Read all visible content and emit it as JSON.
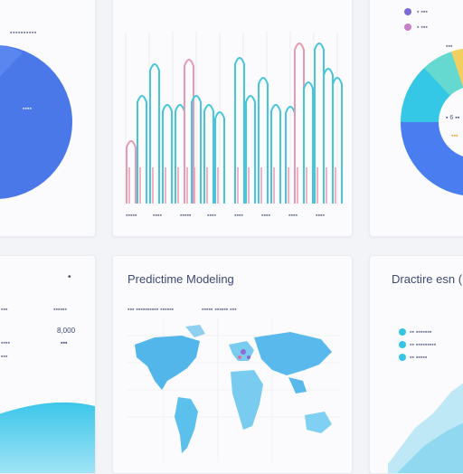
{
  "top_left": {
    "header_label": "▪▪▪▪▪▪▪▪▪▪",
    "pie_label": "▪▪▪▪"
  },
  "top_mid": {
    "x_ticks": [
      "▪▪▪▪▪",
      "▪▪▪▪",
      "▪▪▪▪▪",
      "▪▪▪▪",
      "▪▪▪▪",
      "▪▪▪▪",
      "▪▪▪▪",
      "▪▪▪▪"
    ]
  },
  "top_right": {
    "legend": [
      {
        "label": "▪ ▪▪▪",
        "color": "#7b6bd8"
      },
      {
        "label": "▪ ▪▪▪",
        "color": "#c780c8"
      }
    ],
    "corner_value": "▪▪▪",
    "donut_labels": [
      "▪ 6 ▪▪",
      "▪▪▪"
    ]
  },
  "bottom_left": {
    "marker": "•",
    "rows": [
      {
        "left": "▪▪▪",
        "right": "▪▪▪▪▪▪"
      },
      {
        "left": "",
        "right": "8,000"
      },
      {
        "left": "▪▪▪▪",
        "right": "▪▪▪"
      },
      {
        "left": "▪▪▪",
        "right": ""
      }
    ]
  },
  "bottom_mid": {
    "title": "Predictime Modeling",
    "subtitle_left": "▪▪▪ ▪▪▪▪▪▪▪▪▪▪ ▪▪▪▪▪▪",
    "subtitle_right": "▪▪▪▪▪ ▪▪▪▪▪▪ ▪▪▪"
  },
  "bottom_right": {
    "title": "Dractire esn (",
    "legend": [
      {
        "label": "▪▪ ▪▪▪▪▪▪▪",
        "color": "#35c6e4"
      },
      {
        "label": "▪▪ ▪▪▪▪▪▪▪▪▪",
        "color": "#35c6e4"
      },
      {
        "label": "▪▪ ▪▪▪▪▪",
        "color": "#35c6e4"
      }
    ]
  },
  "colors": {
    "blue": "#4b78e8",
    "cyan": "#46c6dc",
    "pink": "#e99ab0",
    "teal": "#3fd0d8",
    "map_blue": "#52b6ea"
  }
}
